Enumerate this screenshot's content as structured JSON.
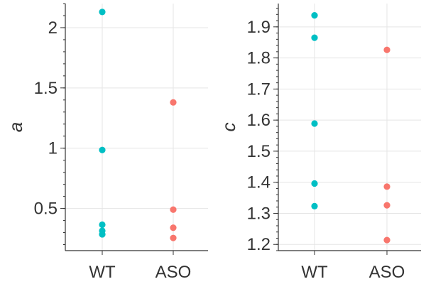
{
  "colors": {
    "WT": "#00BFC4",
    "ASO": "#F8766D"
  },
  "chart_data": [
    {
      "type": "scatter",
      "title": "",
      "xlabel": "",
      "ylabel": "a",
      "categories": [
        "WT",
        "ASO"
      ],
      "ylim": [
        0.15,
        2.2
      ],
      "yticks": [
        0.5,
        1,
        1.5,
        2
      ],
      "ytick_labels": [
        "0.5",
        "1",
        "1.5",
        "2"
      ],
      "minor_step": 0.1,
      "grid": true,
      "legend": "none",
      "series": [
        {
          "category": "WT",
          "values": [
            2.13,
            0.985,
            0.365,
            0.315,
            0.285
          ]
        },
        {
          "category": "ASO",
          "values": [
            1.38,
            0.49,
            0.34,
            0.255
          ]
        }
      ]
    },
    {
      "type": "scatter",
      "title": "",
      "xlabel": "",
      "ylabel": "c",
      "categories": [
        "WT",
        "ASO"
      ],
      "ylim": [
        1.18,
        1.975
      ],
      "yticks": [
        1.2,
        1.3,
        1.4,
        1.5,
        1.6,
        1.7,
        1.8,
        1.9
      ],
      "ytick_labels": [
        "1.2",
        "1.3",
        "1.4",
        "1.5",
        "1.6",
        "1.7",
        "1.8",
        "1.9"
      ],
      "minor_step": 0.02,
      "grid": true,
      "legend": "none",
      "series": [
        {
          "category": "WT",
          "values": [
            1.937,
            1.865,
            1.589,
            1.396,
            1.323
          ]
        },
        {
          "category": "ASO",
          "values": [
            1.826,
            1.386,
            1.326,
            1.214
          ]
        }
      ]
    }
  ]
}
